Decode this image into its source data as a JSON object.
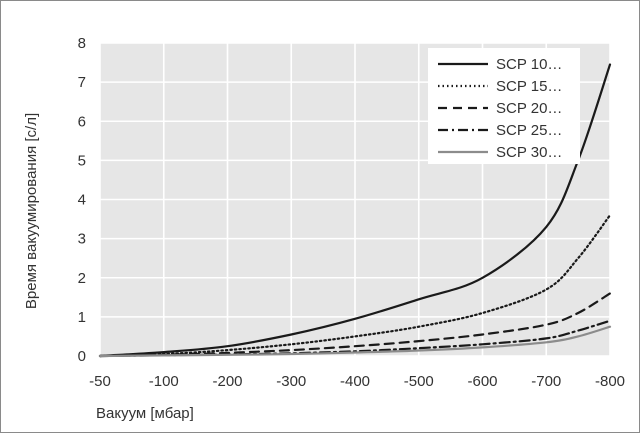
{
  "chart_data": {
    "type": "line",
    "title": "",
    "xlabel": "Вакуум [мбар]",
    "ylabel": "Время вакуумирования [с/л]",
    "x_ticks": [
      -50,
      -100,
      -200,
      -300,
      -400,
      -500,
      -600,
      -700,
      -800
    ],
    "x_tick_labels": [
      "-50",
      "-100",
      "-200",
      "-300",
      "-400",
      "-500",
      "-600",
      "-700",
      "-800"
    ],
    "y_ticks": [
      0,
      1,
      2,
      3,
      4,
      5,
      6,
      7,
      8
    ],
    "y_tick_labels": [
      "0",
      "1",
      "2",
      "3",
      "4",
      "5",
      "6",
      "7",
      "8"
    ],
    "ylim": [
      0,
      8
    ],
    "grid": true,
    "background": "#e6e6e6",
    "legend_position": "top-right",
    "series": [
      {
        "name": "SCP 10…",
        "style": "solid",
        "color": "#1a1a1a",
        "points": [
          [
            -50,
            0
          ],
          [
            -100,
            0.1
          ],
          [
            -200,
            0.25
          ],
          [
            -300,
            0.55
          ],
          [
            -400,
            0.95
          ],
          [
            -500,
            1.45
          ],
          [
            -600,
            2.0
          ],
          [
            -700,
            3.3
          ],
          [
            -750,
            5.0
          ],
          [
            -800,
            7.45
          ]
        ]
      },
      {
        "name": "SCP 15…",
        "style": "dotted",
        "color": "#1a1a1a",
        "points": [
          [
            -50,
            0
          ],
          [
            -100,
            0.05
          ],
          [
            -200,
            0.15
          ],
          [
            -300,
            0.3
          ],
          [
            -400,
            0.5
          ],
          [
            -500,
            0.75
          ],
          [
            -600,
            1.1
          ],
          [
            -700,
            1.7
          ],
          [
            -750,
            2.5
          ],
          [
            -800,
            3.6
          ]
        ]
      },
      {
        "name": "SCP 20…",
        "style": "dashed",
        "color": "#1a1a1a",
        "points": [
          [
            -50,
            0
          ],
          [
            -100,
            0.03
          ],
          [
            -200,
            0.08
          ],
          [
            -300,
            0.15
          ],
          [
            -400,
            0.25
          ],
          [
            -500,
            0.38
          ],
          [
            -600,
            0.55
          ],
          [
            -700,
            0.8
          ],
          [
            -750,
            1.1
          ],
          [
            -800,
            1.6
          ]
        ]
      },
      {
        "name": "SCP 25…",
        "style": "dashdot",
        "color": "#1a1a1a",
        "points": [
          [
            -50,
            0
          ],
          [
            -100,
            0.02
          ],
          [
            -200,
            0.04
          ],
          [
            -300,
            0.07
          ],
          [
            -400,
            0.12
          ],
          [
            -500,
            0.2
          ],
          [
            -600,
            0.3
          ],
          [
            -700,
            0.45
          ],
          [
            -750,
            0.65
          ],
          [
            -800,
            0.9
          ]
        ]
      },
      {
        "name": "SCP 30…",
        "style": "solid",
        "color": "#8c8c8c",
        "points": [
          [
            -50,
            0
          ],
          [
            -100,
            0.015
          ],
          [
            -200,
            0.03
          ],
          [
            -300,
            0.05
          ],
          [
            -400,
            0.09
          ],
          [
            -500,
            0.14
          ],
          [
            -600,
            0.22
          ],
          [
            -700,
            0.35
          ],
          [
            -750,
            0.5
          ],
          [
            -800,
            0.75
          ]
        ]
      }
    ]
  }
}
